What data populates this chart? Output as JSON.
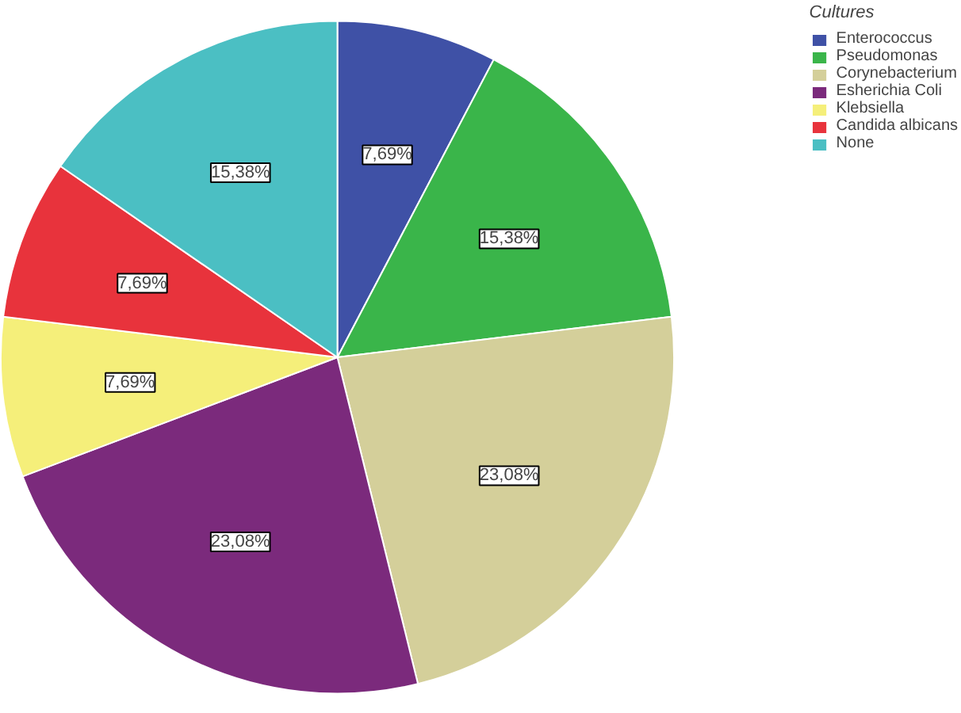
{
  "chart_data": {
    "type": "pie",
    "legend_title": "Cultures",
    "legend": "top right",
    "categories": [
      "Enterococcus",
      "Pseudomonas",
      "Corynebacterium",
      "Esherichia Coli",
      "Klebsiella",
      "Candida albicans",
      "None"
    ],
    "values": [
      7.69,
      15.38,
      23.08,
      23.08,
      7.69,
      7.69,
      15.38
    ],
    "value_labels": [
      "7,69%",
      "15,38%",
      "23,08%",
      "23,08%",
      "7,69%",
      "7,69%",
      "15,38%"
    ],
    "colors": [
      "#3f51a6",
      "#3ab54a",
      "#d4cf9a",
      "#7b2a7c",
      "#f5ef7a",
      "#e8333c",
      "#4bbfc3"
    ]
  }
}
